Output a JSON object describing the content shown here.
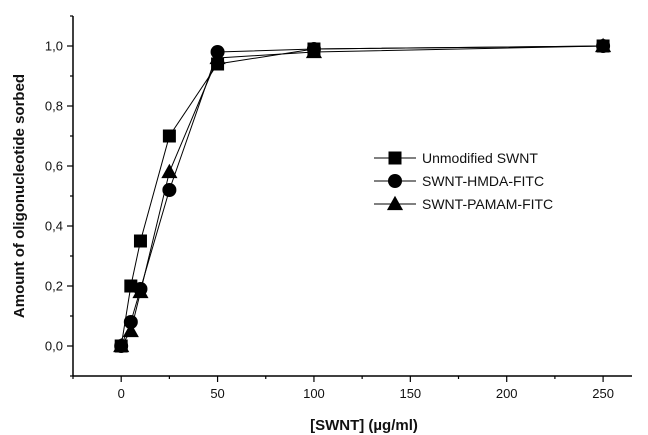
{
  "chart_data": {
    "type": "line",
    "title": "",
    "xlabel": "[SWNT] (µg/ml)",
    "ylabel": "Amount of oligonucleotide sorbed",
    "xlim": [
      -25,
      265
    ],
    "ylim": [
      -0.1,
      1.1
    ],
    "xticks": [
      0,
      50,
      100,
      150,
      200,
      250
    ],
    "xtick_labels": [
      "0",
      "50",
      "100",
      "150",
      "200",
      "250"
    ],
    "yticks": [
      0,
      0.2,
      0.4,
      0.6,
      0.8,
      1.0
    ],
    "ytick_labels": [
      "0,0",
      "0,2",
      "0,4",
      "0,6",
      "0,8",
      "1,0"
    ],
    "grid": false,
    "legend_position": "center-right",
    "series": [
      {
        "name": "Unmodified SWNT",
        "marker": "square",
        "color": "#000000",
        "x": [
          0,
          5,
          10,
          25,
          50,
          100,
          250
        ],
        "y": [
          0.0,
          0.2,
          0.35,
          0.7,
          0.94,
          0.99,
          1.0
        ]
      },
      {
        "name": "SWNT-HMDA-FITC",
        "marker": "circle",
        "color": "#000000",
        "x": [
          0,
          5,
          10,
          25,
          50,
          100,
          250
        ],
        "y": [
          0.0,
          0.08,
          0.19,
          0.52,
          0.98,
          0.99,
          1.0
        ]
      },
      {
        "name": "SWNT-PAMAM-FITC",
        "marker": "triangle",
        "color": "#000000",
        "x": [
          0,
          5,
          10,
          25,
          50,
          100,
          250
        ],
        "y": [
          0.0,
          0.05,
          0.18,
          0.58,
          0.96,
          0.98,
          1.0
        ]
      }
    ]
  }
}
